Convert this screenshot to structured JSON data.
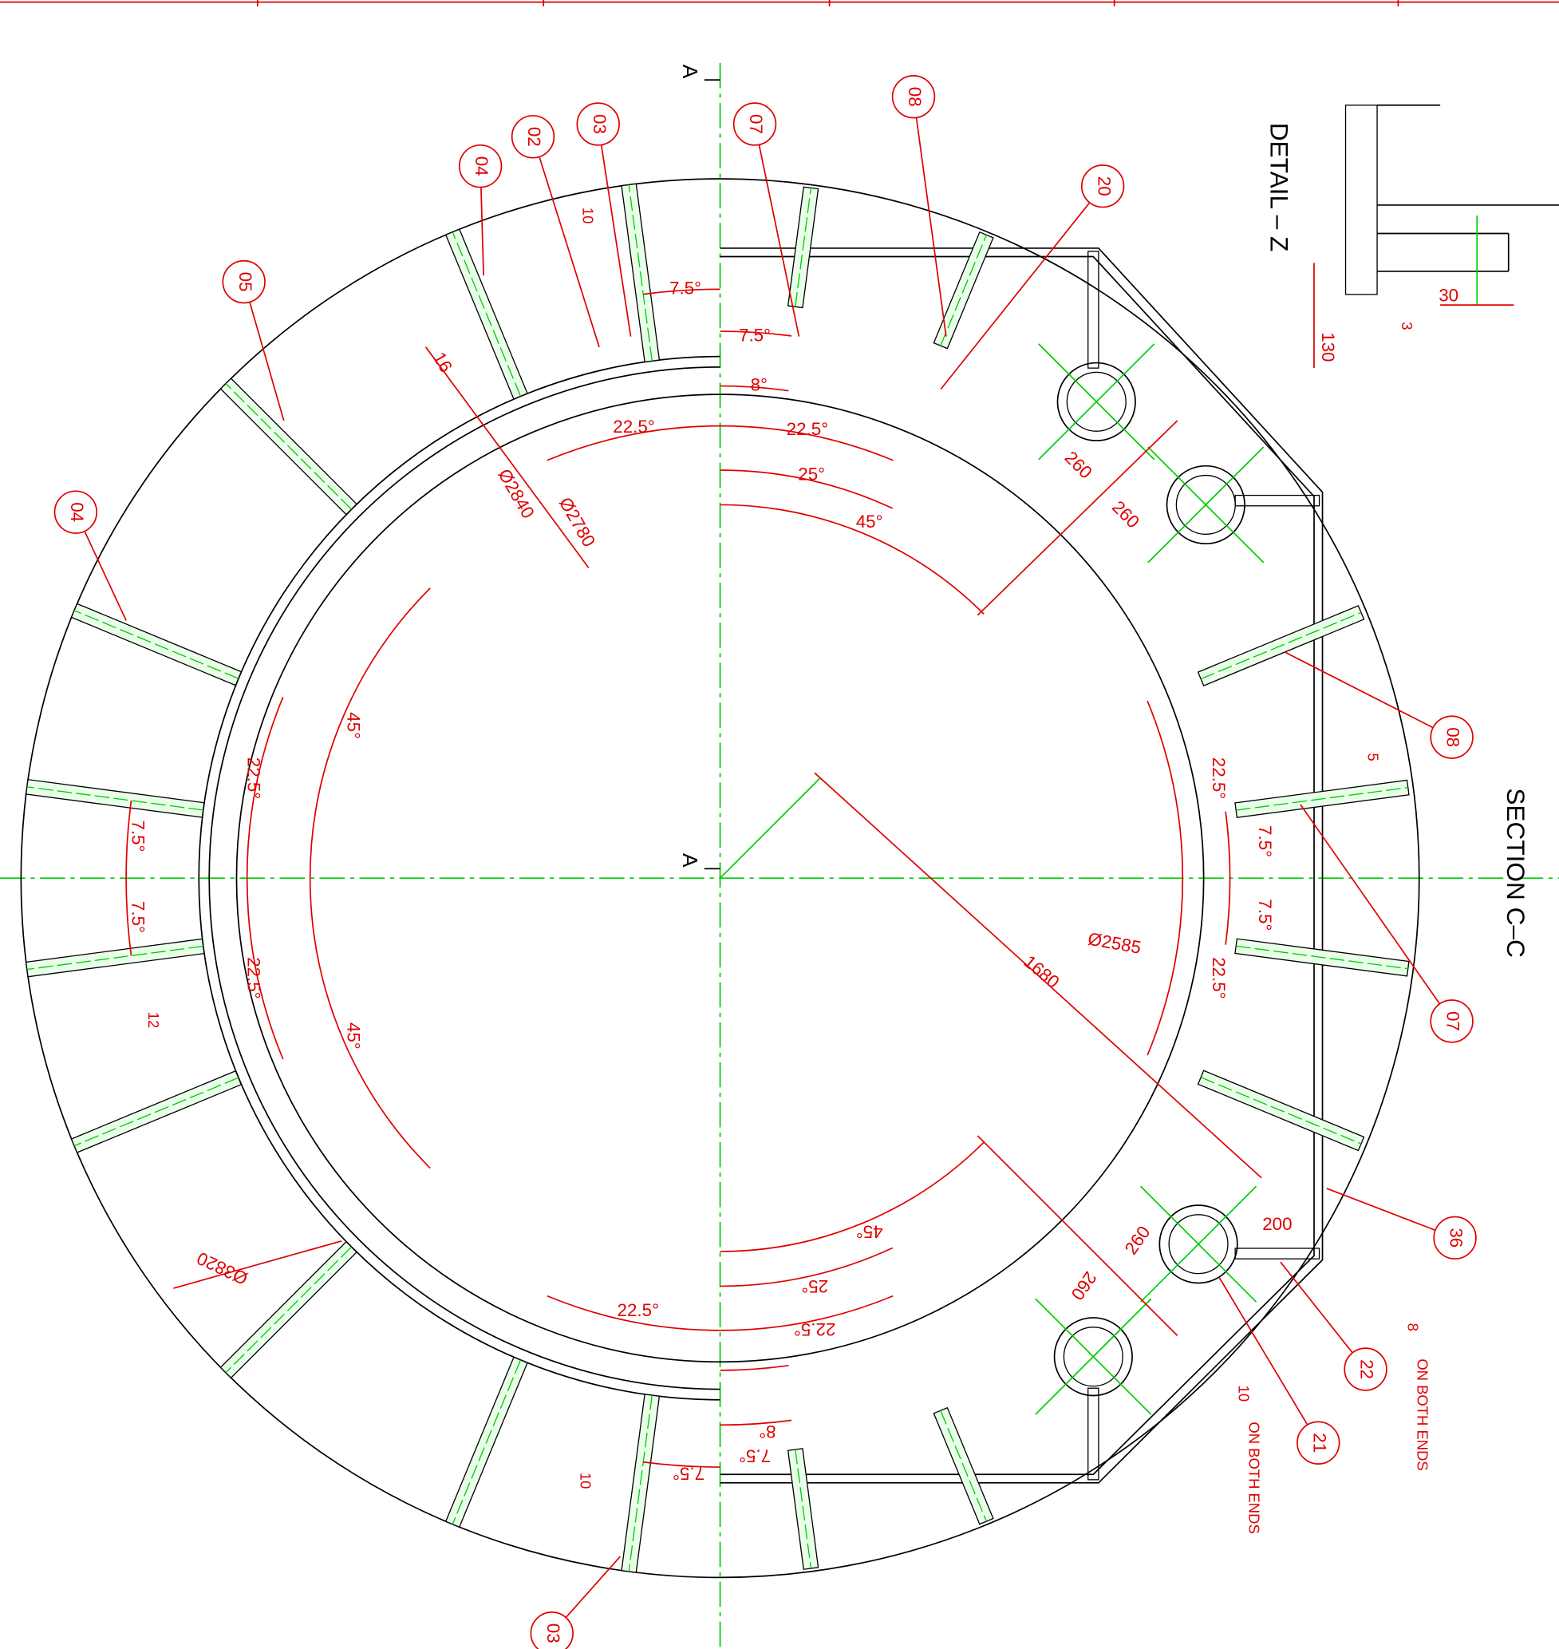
{
  "titles": {
    "section": "SECTION C–C",
    "detail": "DETAIL – Z"
  },
  "section_marks": [
    "A",
    "A"
  ],
  "balloons": [
    "03",
    "07",
    "08",
    "02",
    "04",
    "05",
    "20",
    "04",
    "08",
    "07",
    "36",
    "22",
    "21",
    "03"
  ],
  "angle_dims": [
    "7.5°",
    "7.5°",
    "8°",
    "22.5°",
    "22.5°",
    "25°",
    "45°",
    "45°",
    "22.5°",
    "7.5°",
    "7.5°",
    "22.5°",
    "45°",
    "22.5°",
    "7.5°",
    "7.5°",
    "22.5°",
    "45°",
    "25°",
    "22.5°",
    "22.5°",
    "8°",
    "7.5°",
    "7.5°"
  ],
  "linear_dims": [
    "16",
    "Ø2840",
    "Ø2780",
    "Ø2585",
    "1680",
    "Ø3820",
    "260",
    "260",
    "260",
    "260",
    "200",
    "130",
    "30"
  ],
  "welds": [
    "10",
    "3",
    "5",
    "12",
    "8",
    "10",
    "10"
  ],
  "notes": [
    "ON BOTH ENDS",
    "ON BOTH ENDS"
  ]
}
